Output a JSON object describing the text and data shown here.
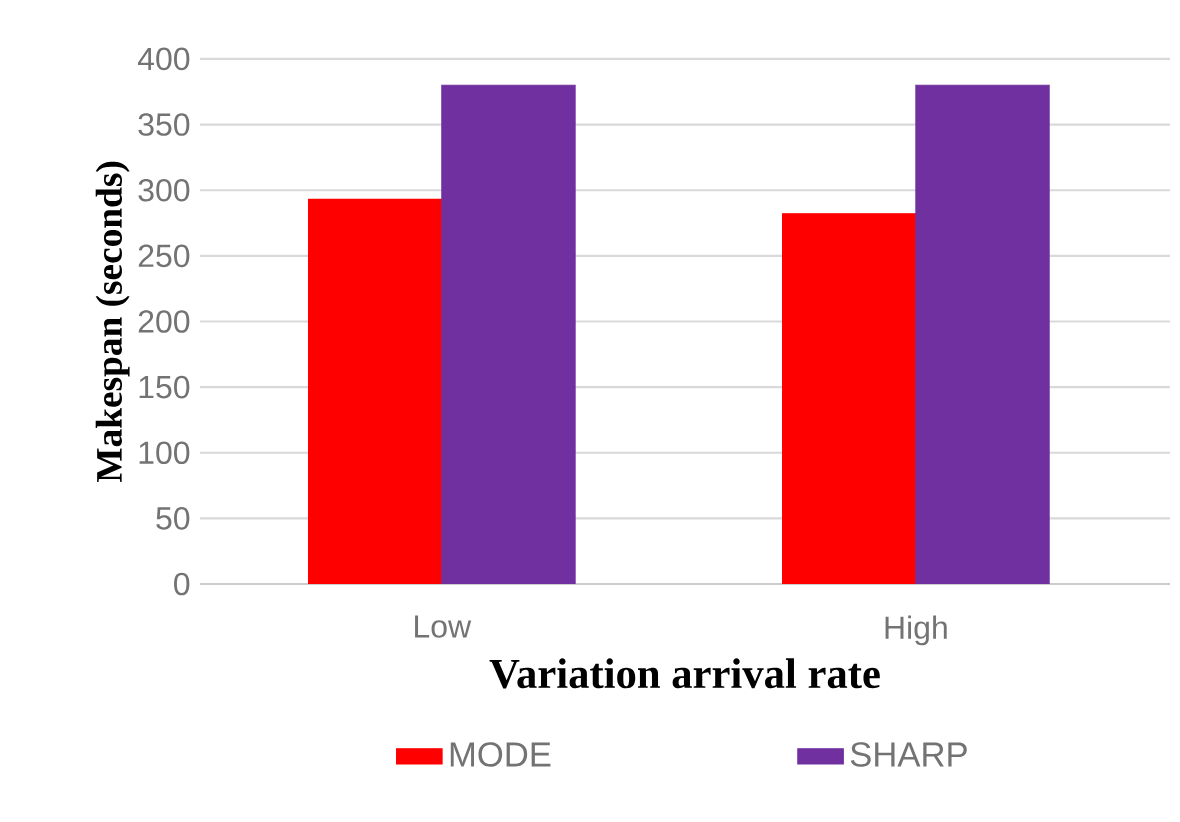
{
  "chart_data": {
    "type": "bar",
    "xlabel": "Variation arrival rate",
    "ylabel": "Makespan (seconds)",
    "categories": [
      "Low",
      "High"
    ],
    "series": [
      {
        "name": "MODE",
        "color": "#ff0000",
        "values": [
          293,
          282
        ]
      },
      {
        "name": "SHARP",
        "color": "#7030a0",
        "values": [
          380,
          380
        ]
      }
    ],
    "ylim": [
      0,
      400
    ],
    "yticks": [
      0,
      50,
      100,
      150,
      200,
      250,
      300,
      350,
      400
    ],
    "grid": "y",
    "legend": "bottom"
  }
}
